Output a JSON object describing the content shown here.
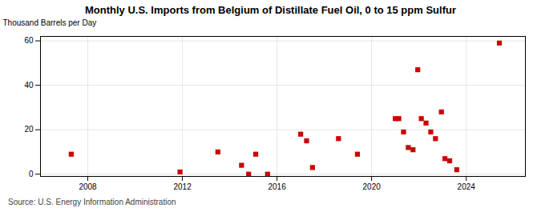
{
  "chart_data": {
    "type": "scatter",
    "title": "Monthly U.S. Imports from Belgium of Distillate Fuel Oil, 0 to 15 ppm Sulfur",
    "ylabel": "Thousand Barrels per Day",
    "source": "Source: U.S. Energy Information Administration",
    "x": [
      2007.3,
      2011.9,
      2013.5,
      2014.5,
      2014.8,
      2015.1,
      2015.6,
      2017.0,
      2017.25,
      2017.5,
      2018.6,
      2019.4,
      2021.0,
      2021.15,
      2021.35,
      2021.55,
      2021.75,
      2021.95,
      2022.1,
      2022.3,
      2022.5,
      2022.7,
      2022.95,
      2023.1,
      2023.3,
      2023.6,
      2025.4
    ],
    "values": [
      9,
      1,
      10,
      4,
      0,
      9,
      0,
      18,
      15,
      3,
      16,
      9,
      25,
      25,
      19,
      12,
      11,
      47,
      25,
      23,
      19,
      16,
      28,
      7,
      6,
      2,
      59
    ],
    "color": "#cc0000",
    "marker": "square",
    "xlim": [
      2006.0,
      2026.5
    ],
    "ylim": [
      -1,
      62
    ],
    "xticks": [
      2008,
      2012,
      2016,
      2020,
      2024
    ],
    "yticks": [
      0,
      20,
      40,
      60
    ],
    "grid": true
  }
}
